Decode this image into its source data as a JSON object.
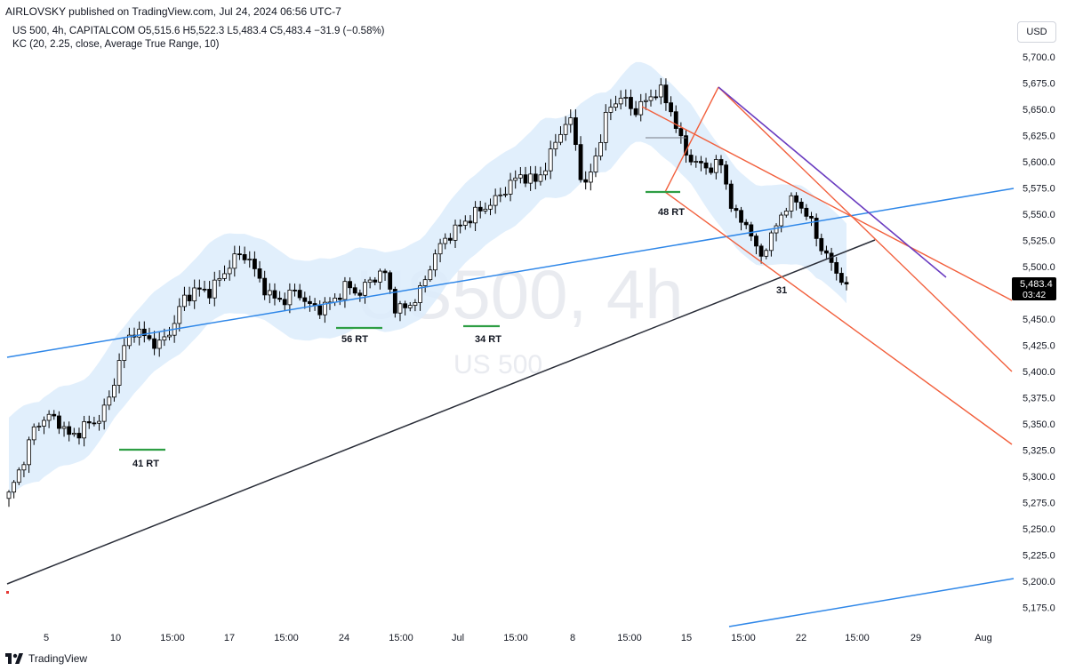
{
  "header": {
    "publisher_line": "AIRLOVSKY published on TradingView.com, Jul 24, 2024 06:56 UTC-7"
  },
  "legend": {
    "line1": "US 500, 4h, CAPITALCOM  O5,515.6  H5,522.3  L5,483.4  C5,483.4  −31.9 (−0.58%)",
    "line2": "KC (20, 2.25, close, Average True Range, 10)"
  },
  "currency": "USD",
  "watermark": {
    "symbol_tf": "US500, 4h",
    "name": "US 500"
  },
  "footer": {
    "brand": "TradingView",
    "logo_icon": "tradingview-logo-icon"
  },
  "colors": {
    "up": "#ffffff",
    "down": "#000000",
    "band": "#dcecfb",
    "blue_line": "#2f87e8",
    "black_line": "#2a2e39",
    "red_lines": "#f2603d",
    "purple_line": "#6a3cc0",
    "green_marks": "#2e9e44"
  },
  "chart_data": {
    "type": "candlestick",
    "title": "US 500, 4h, CAPITALCOM",
    "ohlc_last": {
      "open": 5515.6,
      "high": 5522.3,
      "low": 5483.4,
      "close": 5483.4,
      "change": -31.9,
      "change_pct": -0.58
    },
    "indicator": "KC (20, 2.25, close, Average True Range, 10)",
    "ylim": [
      5158,
      5724
    ],
    "y_ticks": [
      "5,700.0",
      "5,675.0",
      "5,650.0",
      "5,625.0",
      "5,600.0",
      "5,575.0",
      "5,550.0",
      "5,525.0",
      "5,500.0",
      "5,475.0",
      "5,450.0",
      "5,425.0",
      "5,400.0",
      "5,375.0",
      "5,350.0",
      "5,325.0",
      "5,300.0",
      "5,275.0",
      "5,250.0",
      "5,225.0",
      "5,200.0",
      "5,175.0"
    ],
    "x_ticks": [
      "5",
      "10",
      "15:00",
      "17",
      "15:00",
      "24",
      "15:00",
      "Jul",
      "15:00",
      "8",
      "15:00",
      "15",
      "15:00",
      "22",
      "15:00",
      "29",
      "Aug"
    ],
    "price_label": {
      "price": "5,483.4",
      "countdown": "03:42"
    },
    "annotations": [
      "41 RT",
      "56 RT",
      "34 RT",
      "48 RT",
      "31"
    ],
    "close_path": [
      5282,
      5310,
      5345,
      5358,
      5352,
      5336,
      5348,
      5352,
      5372,
      5418,
      5440,
      5432,
      5425,
      5440,
      5470,
      5478,
      5476,
      5490,
      5508,
      5512,
      5488,
      5470,
      5468,
      5478,
      5462,
      5460,
      5468,
      5482,
      5474,
      5488,
      5496,
      5458,
      5462,
      5478,
      5510,
      5528,
      5538,
      5548,
      5556,
      5564,
      5578,
      5588,
      5580,
      5596,
      5628,
      5640,
      5570,
      5608,
      5652,
      5662,
      5648,
      5658,
      5670,
      5648,
      5610,
      5598,
      5594,
      5598,
      5548,
      5542,
      5508,
      5528,
      5556,
      5564,
      5546,
      5518,
      5498,
      5483.4
    ]
  }
}
